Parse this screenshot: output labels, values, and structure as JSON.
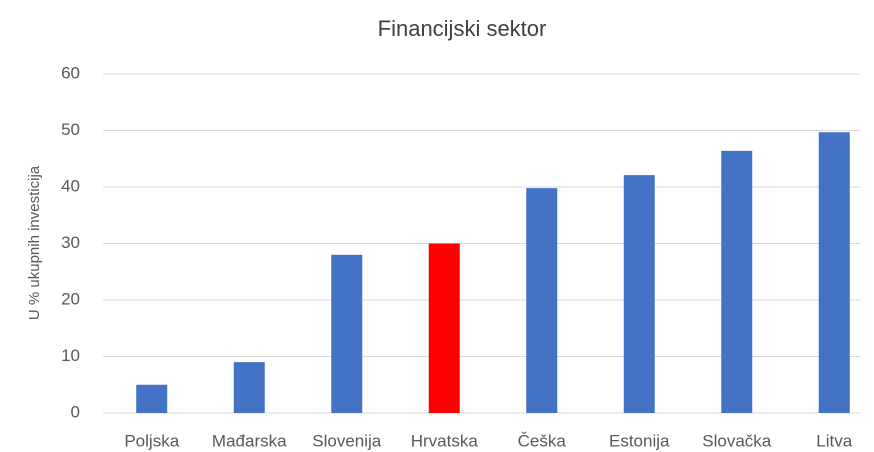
{
  "chart_data": {
    "type": "bar",
    "title": "Financijski sektor",
    "y_label": "U % ukupnih investicija",
    "categories": [
      "Poljska",
      "Mađarska",
      "Slovenija",
      "Hrvatska",
      "Češka",
      "Estonija",
      "Slovačka",
      "Litva"
    ],
    "values": [
      5,
      9,
      28,
      30,
      39.8,
      42.1,
      46.4,
      49.7
    ],
    "colors": [
      "#4472c4",
      "#4472c4",
      "#4472c4",
      "#ff0000",
      "#4472c4",
      "#4472c4",
      "#4472c4",
      "#4472c4"
    ],
    "ylim": [
      0,
      60
    ],
    "yticks": [
      0,
      10,
      20,
      30,
      40,
      50,
      60
    ],
    "grid": true
  }
}
